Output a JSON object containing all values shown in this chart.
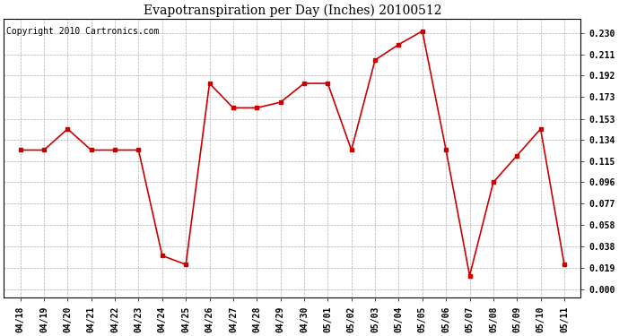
{
  "title": "Evapotranspiration per Day (Inches) 20100512",
  "copyright": "Copyright 2010 Cartronics.com",
  "x_labels": [
    "04/18",
    "04/19",
    "04/20",
    "04/21",
    "04/22",
    "04/23",
    "04/24",
    "04/25",
    "04/26",
    "04/27",
    "04/28",
    "04/29",
    "04/30",
    "05/01",
    "05/02",
    "05/03",
    "05/04",
    "05/05",
    "05/06",
    "05/07",
    "05/08",
    "05/09",
    "05/10",
    "05/11"
  ],
  "values": [
    0.125,
    0.125,
    0.144,
    0.125,
    0.125,
    0.125,
    0.03,
    0.022,
    0.185,
    0.163,
    0.163,
    0.168,
    0.185,
    0.185,
    0.125,
    0.206,
    0.22,
    0.232,
    0.125,
    0.012,
    0.096,
    0.12,
    0.144,
    0.022
  ],
  "yticks": [
    0.0,
    0.019,
    0.038,
    0.058,
    0.077,
    0.096,
    0.115,
    0.134,
    0.153,
    0.173,
    0.192,
    0.211,
    0.23
  ],
  "line_color": "#cc0000",
  "marker": "s",
  "marker_size": 2.5,
  "background_color": "#ffffff",
  "grid_color": "#b0b0b0",
  "ylim": [
    -0.008,
    0.243
  ],
  "title_fontsize": 10,
  "copyright_fontsize": 7,
  "tick_fontsize": 7
}
